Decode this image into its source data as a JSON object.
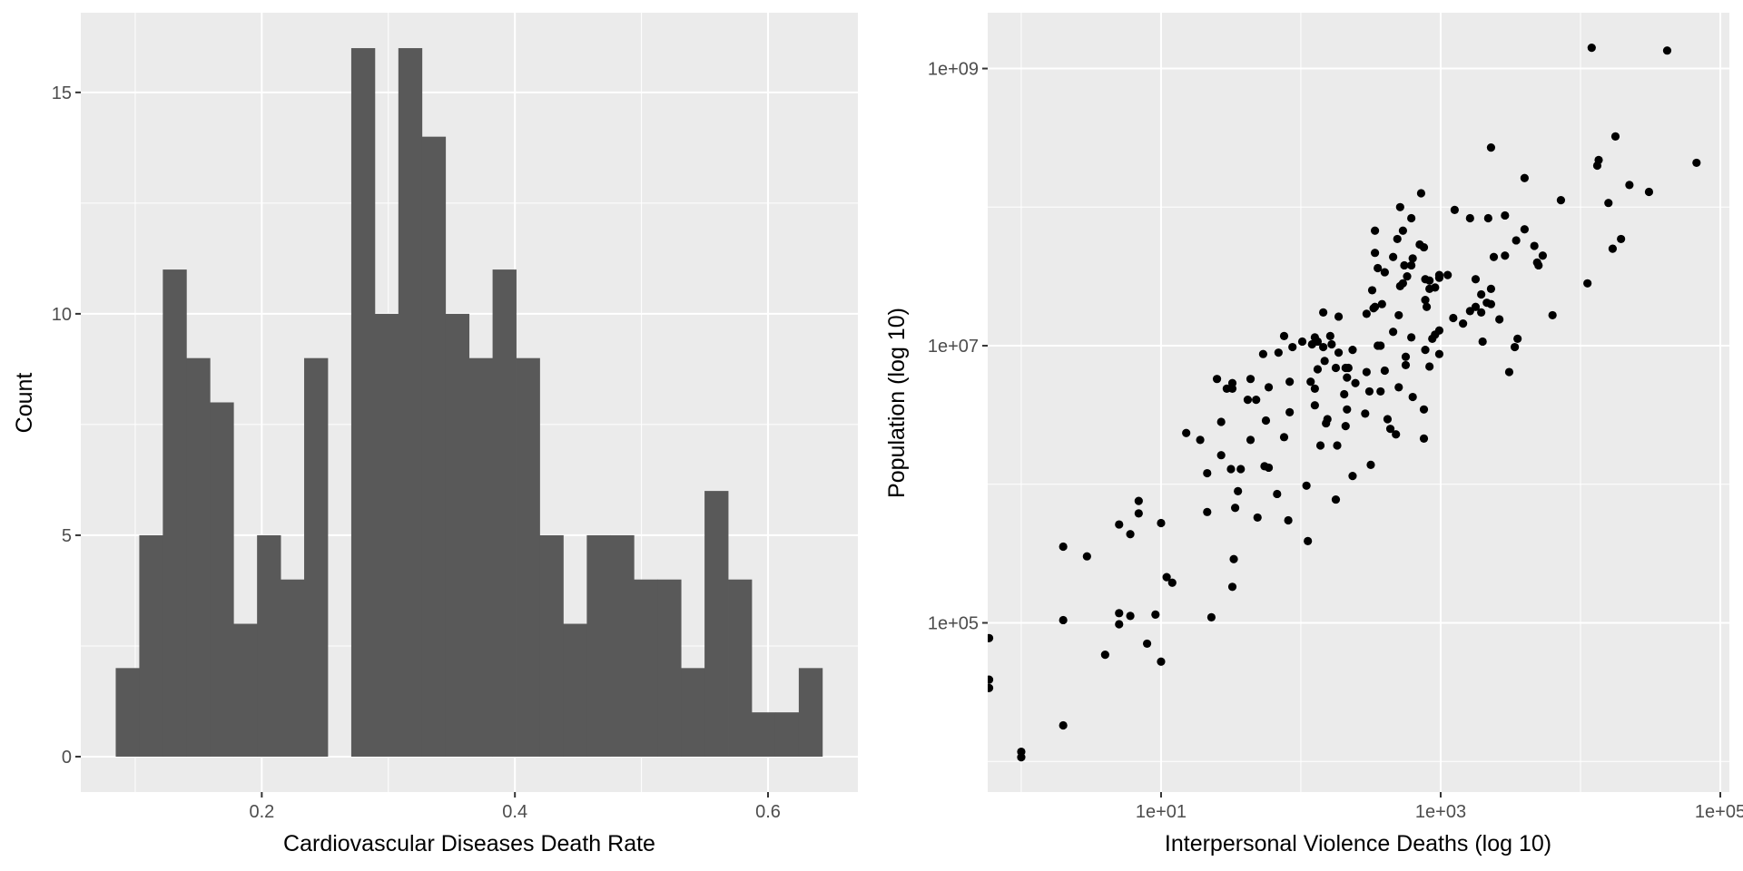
{
  "chart_data": [
    {
      "type": "bar",
      "subtype": "histogram",
      "title": "",
      "xlabel": "Cardiovascular Diseases Death Rate",
      "ylabel": "Count",
      "xlim": [
        0.057,
        0.671
      ],
      "ylim": [
        -0.8,
        16.8
      ],
      "x_ticks": [
        0.2,
        0.4,
        0.6
      ],
      "x_tick_labels": [
        "0.2",
        "0.4",
        "0.6"
      ],
      "y_ticks": [
        0,
        5,
        10,
        15
      ],
      "y_tick_labels": [
        "0",
        "5",
        "10",
        "15"
      ],
      "grid": true,
      "bin_start": 0.0846,
      "bin_width": 0.01861,
      "values": [
        2,
        5,
        11,
        9,
        8,
        3,
        5,
        4,
        9,
        0,
        16,
        10,
        16,
        14,
        10,
        9,
        11,
        9,
        5,
        3,
        5,
        5,
        4,
        4,
        2,
        6,
        4,
        1,
        1,
        2
      ],
      "colors": {
        "bar": "#595959",
        "panel": "#ebebeb",
        "grid": "#ffffff"
      }
    },
    {
      "type": "scatter",
      "title": "",
      "xlabel": "Interpersonal Violence Deaths (log 10)",
      "ylabel": "Population (log 10)",
      "x_scale": "log10",
      "y_scale": "log10",
      "xlim_log10": [
        -0.24,
        5.065
      ],
      "ylim_log10": [
        3.779,
        9.403
      ],
      "x_ticks_log10": [
        1,
        3,
        5
      ],
      "x_tick_labels": [
        "1e+01",
        "1e+03",
        "1e+05"
      ],
      "y_ticks_log10": [
        5,
        7,
        9
      ],
      "y_tick_labels": [
        "1e+05",
        "1e+07",
        "1e+09"
      ],
      "grid": true,
      "colors": {
        "point": "#000000",
        "panel": "#ebebeb",
        "grid": "#ffffff"
      },
      "points_log10": [
        [
          -0.23,
          4.89
        ],
        [
          -0.23,
          4.59
        ],
        [
          -0.23,
          4.53
        ],
        [
          0.0,
          4.07
        ],
        [
          0.0,
          4.03
        ],
        [
          0.3,
          4.26
        ],
        [
          0.3,
          5.55
        ],
        [
          0.3,
          5.02
        ],
        [
          0.47,
          5.48
        ],
        [
          0.6,
          4.77
        ],
        [
          0.7,
          5.71
        ],
        [
          0.7,
          5.07
        ],
        [
          0.7,
          4.99
        ],
        [
          0.78,
          5.64
        ],
        [
          0.78,
          5.05
        ],
        [
          0.84,
          5.88
        ],
        [
          0.84,
          5.79
        ],
        [
          0.9,
          4.85
        ],
        [
          0.96,
          5.06
        ],
        [
          1.0,
          5.72
        ],
        [
          1.0,
          4.72
        ],
        [
          1.04,
          5.33
        ],
        [
          1.08,
          5.29
        ],
        [
          1.18,
          6.37
        ],
        [
          1.28,
          6.32
        ],
        [
          1.33,
          6.08
        ],
        [
          1.33,
          5.8
        ],
        [
          1.36,
          5.04
        ],
        [
          1.4,
          6.76
        ],
        [
          1.43,
          6.45
        ],
        [
          1.43,
          6.21
        ],
        [
          1.47,
          6.69
        ],
        [
          1.51,
          6.73
        ],
        [
          1.51,
          6.69
        ],
        [
          1.5,
          6.11
        ],
        [
          1.51,
          5.26
        ],
        [
          1.52,
          5.46
        ],
        [
          1.53,
          5.83
        ],
        [
          1.55,
          5.95
        ],
        [
          1.57,
          6.11
        ],
        [
          1.62,
          6.61
        ],
        [
          1.64,
          6.76
        ],
        [
          1.64,
          6.32
        ],
        [
          1.68,
          6.61
        ],
        [
          1.69,
          5.76
        ],
        [
          1.73,
          6.94
        ],
        [
          1.74,
          6.13
        ],
        [
          1.77,
          6.12
        ],
        [
          1.75,
          6.46
        ],
        [
          1.77,
          6.7
        ],
        [
          1.83,
          5.93
        ],
        [
          1.84,
          6.95
        ],
        [
          1.88,
          7.07
        ],
        [
          1.88,
          6.34
        ],
        [
          1.91,
          5.74
        ],
        [
          1.92,
          6.74
        ],
        [
          1.92,
          6.52
        ],
        [
          1.94,
          6.99
        ],
        [
          2.01,
          7.03
        ],
        [
          2.04,
          5.99
        ],
        [
          2.05,
          5.59
        ],
        [
          2.07,
          6.74
        ],
        [
          2.08,
          7.01
        ],
        [
          2.1,
          6.57
        ],
        [
          2.1,
          7.06
        ],
        [
          2.1,
          6.69
        ],
        [
          2.12,
          7.03
        ],
        [
          2.12,
          6.83
        ],
        [
          2.14,
          6.28
        ],
        [
          2.16,
          7.24
        ],
        [
          2.16,
          6.99
        ],
        [
          2.17,
          6.89
        ],
        [
          2.18,
          6.44
        ],
        [
          2.19,
          6.47
        ],
        [
          2.21,
          7.07
        ],
        [
          2.22,
          7.01
        ],
        [
          2.25,
          6.84
        ],
        [
          2.25,
          5.89
        ],
        [
          2.26,
          6.28
        ],
        [
          2.27,
          6.95
        ],
        [
          2.27,
          7.21
        ],
        [
          2.31,
          6.65
        ],
        [
          2.32,
          6.84
        ],
        [
          2.32,
          6.42
        ],
        [
          2.33,
          6.54
        ],
        [
          2.33,
          6.77
        ],
        [
          2.34,
          6.84
        ],
        [
          2.37,
          6.97
        ],
        [
          2.37,
          6.06
        ],
        [
          2.39,
          6.73
        ],
        [
          2.46,
          6.51
        ],
        [
          2.47,
          7.23
        ],
        [
          2.47,
          6.81
        ],
        [
          2.49,
          6.67
        ],
        [
          2.5,
          6.14
        ],
        [
          2.51,
          7.4
        ],
        [
          2.52,
          7.27
        ],
        [
          2.53,
          7.67
        ],
        [
          2.53,
          7.83
        ],
        [
          2.53,
          7.28
        ],
        [
          2.55,
          7.56
        ],
        [
          2.55,
          7.0
        ],
        [
          2.57,
          7.0
        ],
        [
          2.57,
          6.67
        ],
        [
          2.58,
          7.3
        ],
        [
          2.6,
          6.82
        ],
        [
          2.6,
          7.53
        ],
        [
          2.62,
          6.47
        ],
        [
          2.64,
          6.4
        ],
        [
          2.66,
          7.64
        ],
        [
          2.66,
          7.1
        ],
        [
          2.68,
          6.36
        ],
        [
          2.69,
          7.77
        ],
        [
          2.7,
          7.22
        ],
        [
          2.7,
          6.7
        ],
        [
          2.71,
          8.0
        ],
        [
          2.71,
          7.43
        ],
        [
          2.73,
          7.45
        ],
        [
          2.73,
          7.83
        ],
        [
          2.74,
          7.58
        ],
        [
          2.75,
          6.92
        ],
        [
          2.75,
          6.86
        ],
        [
          2.76,
          7.5
        ],
        [
          2.79,
          7.92
        ],
        [
          2.79,
          7.58
        ],
        [
          2.79,
          7.06
        ],
        [
          2.8,
          7.63
        ],
        [
          2.8,
          6.63
        ],
        [
          2.85,
          7.73
        ],
        [
          2.86,
          8.1
        ],
        [
          2.88,
          7.71
        ],
        [
          2.88,
          6.54
        ],
        [
          2.88,
          6.33
        ],
        [
          2.89,
          7.48
        ],
        [
          2.89,
          7.33
        ],
        [
          2.89,
          6.97
        ],
        [
          2.9,
          7.28
        ],
        [
          2.92,
          7.47
        ],
        [
          2.92,
          7.41
        ],
        [
          2.92,
          6.85
        ],
        [
          2.94,
          7.05
        ],
        [
          2.96,
          7.42
        ],
        [
          2.96,
          7.08
        ],
        [
          2.99,
          7.51
        ],
        [
          2.99,
          7.49
        ],
        [
          2.99,
          7.11
        ],
        [
          2.99,
          6.94
        ],
        [
          3.05,
          7.51
        ],
        [
          3.09,
          7.2
        ],
        [
          3.1,
          7.98
        ],
        [
          3.16,
          7.16
        ],
        [
          3.21,
          7.92
        ],
        [
          3.21,
          7.25
        ],
        [
          3.25,
          7.28
        ],
        [
          3.25,
          7.48
        ],
        [
          3.29,
          7.24
        ],
        [
          3.29,
          7.37
        ],
        [
          3.3,
          7.03
        ],
        [
          3.33,
          7.31
        ],
        [
          3.34,
          7.92
        ],
        [
          3.36,
          8.43
        ],
        [
          3.36,
          7.41
        ],
        [
          3.36,
          7.3
        ],
        [
          3.38,
          7.64
        ],
        [
          3.42,
          7.19
        ],
        [
          3.46,
          7.94
        ],
        [
          3.46,
          7.65
        ],
        [
          3.49,
          6.81
        ],
        [
          3.53,
          6.99
        ],
        [
          3.54,
          7.76
        ],
        [
          3.55,
          7.05
        ],
        [
          3.6,
          8.21
        ],
        [
          3.6,
          7.84
        ],
        [
          3.67,
          7.72
        ],
        [
          3.69,
          7.6
        ],
        [
          3.7,
          7.58
        ],
        [
          3.73,
          7.65
        ],
        [
          3.8,
          7.22
        ],
        [
          3.86,
          8.05
        ],
        [
          4.05,
          7.45
        ],
        [
          4.08,
          9.15
        ],
        [
          4.12,
          8.3
        ],
        [
          4.13,
          8.34
        ],
        [
          4.2,
          8.03
        ],
        [
          4.23,
          7.7
        ],
        [
          4.25,
          8.51
        ],
        [
          4.29,
          7.77
        ],
        [
          4.35,
          8.16
        ],
        [
          4.49,
          8.11
        ],
        [
          4.62,
          9.13
        ],
        [
          4.83,
          8.32
        ]
      ]
    }
  ]
}
